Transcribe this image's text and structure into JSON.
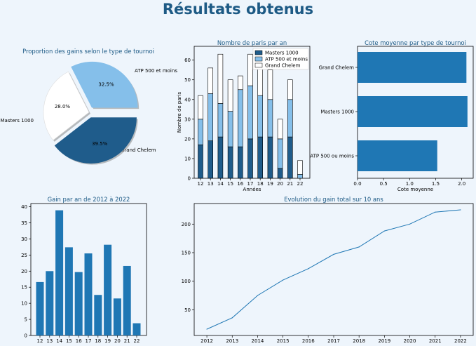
{
  "main_title": "Résultats obtenus",
  "colors": {
    "masters": "#1f5c8b",
    "atp": "#85bfea",
    "grand": "#ffffff",
    "bar": "#1f77b4",
    "title": "#1d5a85"
  },
  "chart_data": [
    {
      "type": "pie",
      "title": "Proportion des gains selon le type de tournoi",
      "labels": [
        "ATP 500 et moins",
        "Grand Chelem",
        "Masters 1000"
      ],
      "values": [
        32.5,
        28.0,
        39.5
      ],
      "value_labels": [
        "32.5%",
        "28.0%",
        "39.5%"
      ],
      "exploded": true
    },
    {
      "type": "bar",
      "stacked": true,
      "title": "Nombre de paris par an",
      "xlabel": "Années",
      "ylabel": "Nombre de paris",
      "categories": [
        "12",
        "13",
        "14",
        "15",
        "16",
        "17",
        "18",
        "19",
        "20",
        "21",
        "22"
      ],
      "series": [
        {
          "name": "Masters 1000",
          "values": [
            17,
            19,
            21,
            16,
            16,
            20,
            21,
            21,
            5,
            21,
            0
          ]
        },
        {
          "name": "ATP 500 et moins",
          "values": [
            13,
            24,
            17,
            18,
            29,
            27,
            21,
            19,
            15,
            19,
            2
          ]
        },
        {
          "name": "Grand Chelem",
          "values": [
            12,
            13,
            25,
            16,
            7,
            16,
            18,
            15,
            10,
            10,
            7
          ]
        }
      ],
      "ylim": [
        0,
        67
      ],
      "yticks": [
        0,
        10,
        20,
        30,
        40,
        50,
        60
      ],
      "legend": "top-right"
    },
    {
      "type": "bar",
      "orientation": "horizontal",
      "title": "Cote moyenne par type de tournoi",
      "xlabel": "Cote moyenne",
      "categories": [
        "ATP 500 ou moins",
        "Masters 1000",
        "Grand Chelem"
      ],
      "values": [
        1.53,
        2.11,
        2.09
      ],
      "xlim": [
        0,
        2.22
      ],
      "xticks": [
        0.0,
        0.5,
        1.0,
        1.5,
        2.0
      ],
      "xtick_labels": [
        "0.0",
        "0.5",
        "1.0",
        "1.5",
        "2.0"
      ]
    },
    {
      "type": "bar",
      "title": "Gain par an de 2012 à 2022",
      "categories": [
        "12",
        "13",
        "14",
        "15",
        "16",
        "17",
        "18",
        "19",
        "20",
        "21",
        "22"
      ],
      "values": [
        16.6,
        20.0,
        38.9,
        27.4,
        19.7,
        25.5,
        12.6,
        28.2,
        11.5,
        21.6,
        3.8
      ],
      "ylim": [
        0,
        41
      ],
      "yticks": [
        0,
        5,
        10,
        15,
        20,
        25,
        30,
        35,
        40
      ]
    },
    {
      "type": "line",
      "title": "Evolution du gain total sur 10 ans",
      "x": [
        2012,
        2013,
        2014,
        2015,
        2016,
        2017,
        2018,
        2019,
        2020,
        2021,
        2022
      ],
      "y": [
        16,
        36,
        75,
        102,
        122,
        147,
        160,
        188,
        200,
        221,
        225
      ],
      "xlim": [
        2011.5,
        2022.5
      ],
      "ylim": [
        5,
        236
      ],
      "yticks": [
        50,
        100,
        150,
        200
      ],
      "xticks": [
        2012,
        2013,
        2014,
        2015,
        2016,
        2017,
        2018,
        2019,
        2020,
        2021,
        2022
      ]
    }
  ]
}
